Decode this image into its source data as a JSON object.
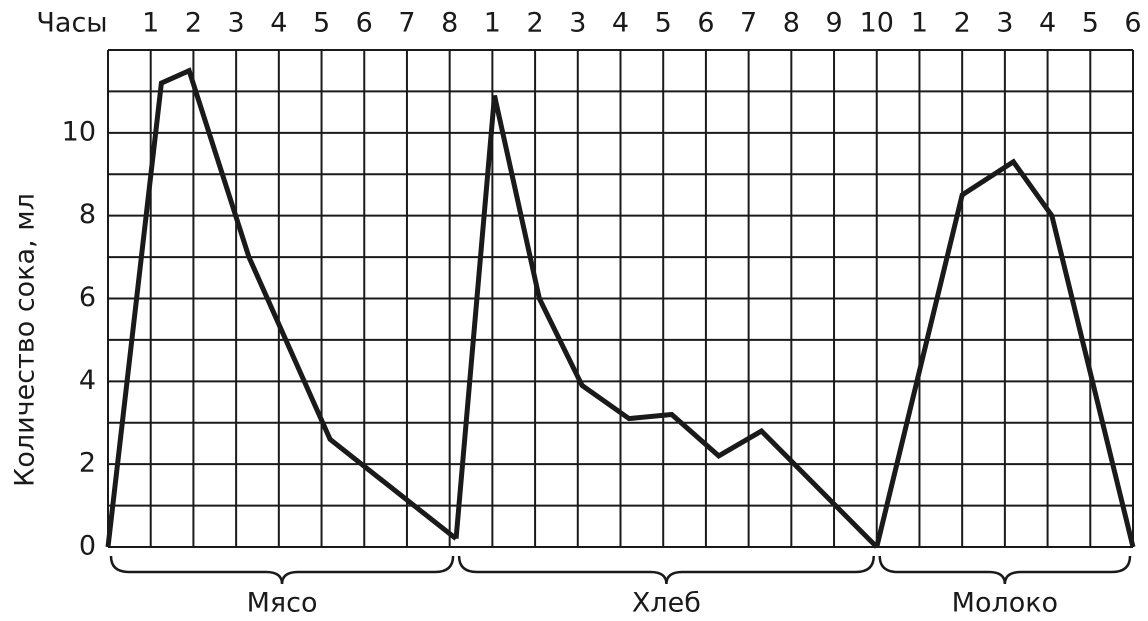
{
  "chart_data": {
    "type": "line",
    "x_label": "Часы",
    "y_label": "Количество сока, мл",
    "xlim": [
      0,
      24
    ],
    "xticks": [
      {
        "value": 1,
        "label": "1"
      },
      {
        "value": 2,
        "label": "2"
      },
      {
        "value": 3,
        "label": "3"
      },
      {
        "value": 4,
        "label": "4"
      },
      {
        "value": 5,
        "label": "5"
      },
      {
        "value": 6,
        "label": "6"
      },
      {
        "value": 7,
        "label": "7"
      },
      {
        "value": 8,
        "label": "8"
      },
      {
        "value": 9,
        "label": "1"
      },
      {
        "value": 10,
        "label": "2"
      },
      {
        "value": 11,
        "label": "3"
      },
      {
        "value": 12,
        "label": "4"
      },
      {
        "value": 13,
        "label": "5"
      },
      {
        "value": 14,
        "label": "6"
      },
      {
        "value": 15,
        "label": "7"
      },
      {
        "value": 16,
        "label": "8"
      },
      {
        "value": 17,
        "label": "9"
      },
      {
        "value": 18,
        "label": "10"
      },
      {
        "value": 19,
        "label": "1"
      },
      {
        "value": 20,
        "label": "2"
      },
      {
        "value": 21,
        "label": "3"
      },
      {
        "value": 22,
        "label": "4"
      },
      {
        "value": 23,
        "label": "5"
      },
      {
        "value": 24,
        "label": "6"
      }
    ],
    "ylim": [
      0,
      12
    ],
    "yticks": [
      0,
      2,
      4,
      6,
      8,
      10
    ],
    "y_minor_ticks": [
      1,
      3,
      5,
      7,
      9,
      11,
      12
    ],
    "grid": true,
    "series": [
      {
        "name": "Мясо",
        "color": "#1a1a1a",
        "x": [
          0,
          1.25,
          1.9,
          3.3,
          5.2,
          8.15
        ],
        "values": [
          0,
          11.2,
          11.5,
          7.0,
          2.6,
          0.2
        ]
      },
      {
        "name": "Хлеб",
        "color": "#1a1a1a",
        "x": [
          8.15,
          9.05,
          10.1,
          11.1,
          12.2,
          13.2,
          14.3,
          15.3,
          18
        ],
        "values": [
          0.2,
          10.9,
          6.0,
          3.9,
          3.1,
          3.2,
          2.2,
          2.8,
          0
        ]
      },
      {
        "name": "Молоко",
        "color": "#1a1a1a",
        "x": [
          18,
          20,
          21.2,
          22.1,
          24
        ],
        "values": [
          0,
          8.5,
          9.3,
          8.0,
          0
        ]
      }
    ]
  }
}
